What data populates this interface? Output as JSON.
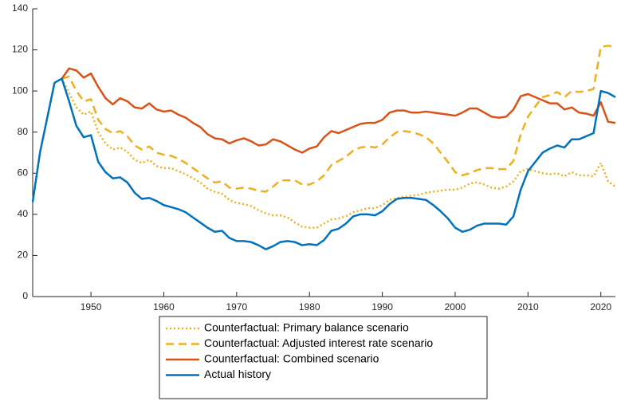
{
  "chart_data": {
    "type": "line",
    "x": [
      1942,
      1943,
      1944,
      1945,
      1946,
      1947,
      1948,
      1949,
      1950,
      1951,
      1952,
      1953,
      1954,
      1955,
      1956,
      1957,
      1958,
      1959,
      1960,
      1961,
      1962,
      1963,
      1964,
      1965,
      1966,
      1967,
      1968,
      1969,
      1970,
      1971,
      1972,
      1973,
      1974,
      1975,
      1976,
      1977,
      1978,
      1979,
      1980,
      1981,
      1982,
      1983,
      1984,
      1985,
      1986,
      1987,
      1988,
      1989,
      1990,
      1991,
      1992,
      1993,
      1994,
      1995,
      1996,
      1997,
      1998,
      1999,
      2000,
      2001,
      2002,
      2003,
      2004,
      2005,
      2006,
      2007,
      2008,
      2009,
      2010,
      2011,
      2012,
      2013,
      2014,
      2015,
      2016,
      2017,
      2018,
      2019,
      2020,
      2021,
      2022
    ],
    "series": [
      {
        "name": "Counterfactual: Primary balance scenario",
        "color": "#EDB120",
        "style": "dotted",
        "values": [
          null,
          null,
          null,
          null,
          106,
          99,
          92,
          88.5,
          90,
          80,
          74.5,
          71.5,
          72.5,
          70.5,
          66.5,
          65,
          66.5,
          63.5,
          62.5,
          62.5,
          61,
          59.5,
          57.5,
          55.5,
          52.5,
          51,
          50,
          47,
          45.5,
          45,
          44,
          42,
          40.5,
          39.5,
          39.5,
          38.5,
          36,
          34,
          33.5,
          33.5,
          35.5,
          37.5,
          38,
          39,
          41,
          42,
          43,
          43,
          44.5,
          47,
          48,
          48.5,
          49,
          49.5,
          50.5,
          51,
          51.5,
          52,
          52,
          53,
          55,
          55.5,
          54.5,
          53,
          52.5,
          53.5,
          56,
          61,
          62,
          61,
          60,
          59.5,
          60,
          58.5,
          60.5,
          59,
          59,
          58.5,
          65,
          56,
          53.5
        ]
      },
      {
        "name": "Counterfactual: Adjusted interest rate scenario",
        "color": "#EDB120",
        "style": "dashed",
        "values": [
          null,
          null,
          null,
          null,
          106,
          107,
          100,
          95,
          96,
          86,
          81.5,
          79.5,
          80.5,
          78,
          73.5,
          71.5,
          73,
          70,
          69,
          68.5,
          67,
          65,
          62.5,
          60,
          57.5,
          55.5,
          56,
          53,
          52.5,
          53,
          52.5,
          51.5,
          51,
          53.5,
          56.5,
          56.5,
          56.5,
          54.5,
          54.5,
          56,
          59,
          64,
          66,
          68,
          71,
          72.5,
          73,
          72.5,
          74,
          77.5,
          80,
          80.5,
          80,
          79,
          77.5,
          74.5,
          70,
          65.5,
          60.5,
          59,
          60,
          61.5,
          62.5,
          62.5,
          62,
          62,
          66,
          79,
          87.5,
          92.5,
          97,
          98,
          99.5,
          97,
          100,
          99.5,
          100,
          101,
          121.5,
          122,
          121.5
        ]
      },
      {
        "name": "Counterfactual: Combined scenario",
        "color": "#D95319",
        "style": "solid",
        "values": [
          null,
          null,
          null,
          null,
          106,
          111,
          110,
          106.5,
          108.5,
          102,
          96.5,
          93.5,
          96.5,
          95,
          92,
          91.5,
          94,
          91,
          90,
          90.5,
          88.5,
          87,
          84.5,
          82.5,
          79,
          77,
          76.5,
          74.5,
          76,
          77,
          75.5,
          73.5,
          74,
          76.5,
          75.5,
          73.5,
          71.5,
          70,
          72,
          73,
          77.5,
          80.5,
          79.5,
          81,
          82.5,
          84,
          84.5,
          84.5,
          86,
          89.5,
          90.5,
          90.5,
          89.5,
          89.5,
          90,
          89.5,
          89,
          88.5,
          88,
          89.5,
          91.5,
          91.5,
          89.5,
          87.5,
          87,
          87.5,
          91,
          97.5,
          98.5,
          97,
          95.5,
          94,
          94,
          91,
          92,
          89.5,
          89,
          88,
          94.5,
          85,
          84.5
        ]
      },
      {
        "name": "Actual history",
        "color": "#0072BD",
        "style": "solid",
        "values": [
          46,
          70,
          87,
          104,
          106,
          95,
          83,
          77.5,
          78.5,
          65.5,
          60.5,
          57.5,
          58,
          55.5,
          50.5,
          47.5,
          48,
          46.5,
          44.5,
          43.5,
          42.5,
          41,
          38.5,
          36,
          33.5,
          31.5,
          32,
          28.5,
          27,
          27,
          26.5,
          25,
          23,
          24.5,
          26.5,
          27,
          26.5,
          25,
          25.5,
          25,
          27.5,
          32,
          33,
          35.5,
          39,
          40,
          40,
          39.5,
          41.5,
          45,
          47.5,
          48,
          48,
          47.5,
          47,
          44.5,
          41.5,
          38,
          33.5,
          31.5,
          32.5,
          34.5,
          35.5,
          35.5,
          35.5,
          35,
          39,
          52,
          61,
          65.5,
          70,
          72,
          73.5,
          72.5,
          76.5,
          76.5,
          78,
          79.5,
          100,
          99,
          97
        ]
      }
    ],
    "xlim": [
      1942,
      2022
    ],
    "xticks": [
      1950,
      1960,
      1970,
      1980,
      1990,
      2000,
      2010,
      2020
    ],
    "ylim": [
      0,
      140
    ],
    "yticks": [
      0,
      20,
      40,
      60,
      80,
      100,
      120,
      140
    ],
    "legend": "bottom"
  }
}
